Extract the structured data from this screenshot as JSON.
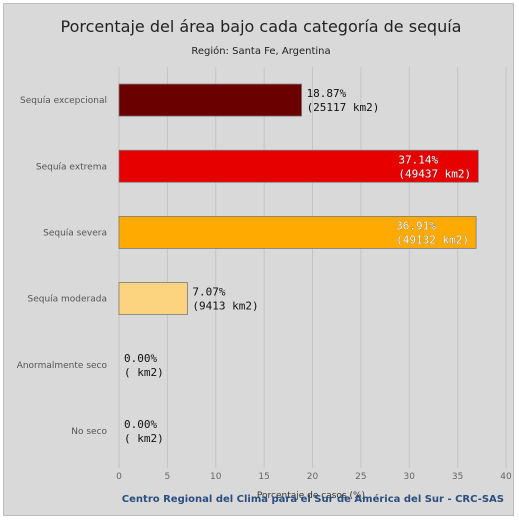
{
  "chart_data": {
    "type": "bar",
    "orientation": "horizontal",
    "title": "Porcentaje del área bajo cada categoría de sequía",
    "subtitle": "Región: Santa Fe, Argentina",
    "xlabel": "Porcentaje de casos (%)",
    "xlim": [
      0,
      40
    ],
    "xticks": [
      0,
      5,
      10,
      15,
      20,
      25,
      30,
      35,
      40
    ],
    "grid": true,
    "categories": [
      "Sequía excepcional",
      "Sequía extrema",
      "Sequía severa",
      "Sequía moderada",
      "Anormalmente seco",
      "No seco"
    ],
    "values": [
      18.87,
      37.14,
      36.91,
      7.07,
      0.0,
      0.0
    ],
    "labels_pct": [
      "18.87%",
      "37.14%",
      "36.91%",
      "7.07%",
      "0.00%",
      "0.00%"
    ],
    "labels_area": [
      "(25117 km2)",
      "(49437 km2)",
      "(49132 km2)",
      "(9413 km2)",
      "( km2)",
      "( km2)"
    ],
    "colors": [
      "#6b0000",
      "#e60000",
      "#ffaa00",
      "#fcd37f",
      "#ffff00",
      "#ffffff"
    ]
  },
  "credit": "Centro Regional del Clima para el Sur de América del Sur - CRC-SAS"
}
